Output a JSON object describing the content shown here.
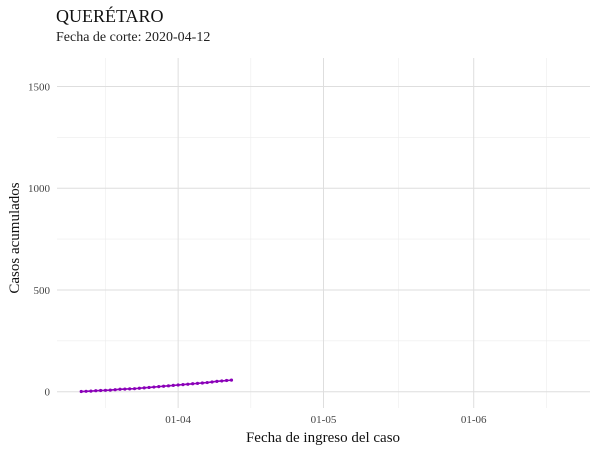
{
  "chart_data": {
    "type": "line",
    "title": "QUERÉTARO",
    "subtitle": "Fecha de corte: 2020-04-12",
    "xlabel": "Fecha de ingreso del caso",
    "ylabel": "Casos acumulados",
    "x_ticks": [
      "01-04",
      "01-05",
      "01-06"
    ],
    "y_ticks": [
      0,
      500,
      1000,
      1500
    ],
    "ylim": [
      -80,
      1640
    ],
    "xlim": [
      "2020-03-07",
      "2020-06-25"
    ],
    "grid": true,
    "series_color": "#8a00b8",
    "series": [
      {
        "x": [
          "2020-03-12",
          "2020-03-13",
          "2020-03-14",
          "2020-03-15",
          "2020-03-16",
          "2020-03-17",
          "2020-03-18",
          "2020-03-19",
          "2020-03-20",
          "2020-03-21",
          "2020-03-22",
          "2020-03-23",
          "2020-03-24",
          "2020-03-25",
          "2020-03-26",
          "2020-03-27",
          "2020-03-28",
          "2020-03-29",
          "2020-03-30",
          "2020-03-31",
          "2020-04-01",
          "2020-04-02",
          "2020-04-03",
          "2020-04-04",
          "2020-04-05",
          "2020-04-06",
          "2020-04-07",
          "2020-04-08",
          "2020-04-09",
          "2020-04-10",
          "2020-04-11",
          "2020-04-12"
        ],
        "values": [
          1,
          2,
          3,
          5,
          6,
          7,
          8,
          10,
          12,
          13,
          14,
          15,
          17,
          19,
          21,
          23,
          25,
          27,
          29,
          31,
          33,
          35,
          37,
          39,
          41,
          43,
          45,
          48,
          51,
          53,
          55,
          57
        ]
      }
    ]
  }
}
